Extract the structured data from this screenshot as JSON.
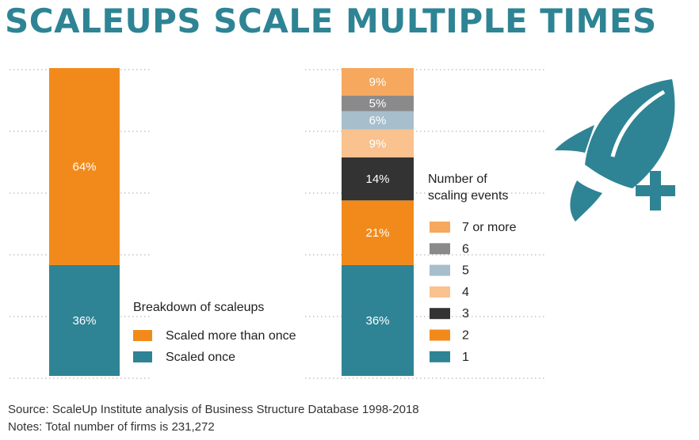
{
  "title": "SCALEUPS SCALE MULTIPLE TIMES",
  "chart_data": [
    {
      "type": "bar",
      "stacked": true,
      "categories": [
        ""
      ],
      "legend_title": "Breakdown of scaleups",
      "series": [
        {
          "name": "Scaled once",
          "values": [
            36
          ],
          "label": "36%",
          "color": "#2e8494"
        },
        {
          "name": "Scaled more than once",
          "values": [
            64
          ],
          "label": "64%",
          "color": "#f28a1b"
        }
      ],
      "ylim": [
        0,
        100
      ],
      "grid": true
    },
    {
      "type": "bar",
      "stacked": true,
      "categories": [
        ""
      ],
      "legend_title": "Number of scaling events",
      "series": [
        {
          "name": "1",
          "values": [
            36
          ],
          "label": "36%",
          "color": "#2e8494"
        },
        {
          "name": "2",
          "values": [
            21
          ],
          "label": "21%",
          "color": "#f28a1b"
        },
        {
          "name": "3",
          "values": [
            14
          ],
          "label": "14%",
          "color": "#333333"
        },
        {
          "name": "4",
          "values": [
            9
          ],
          "label": "9%",
          "color": "#f9c28e"
        },
        {
          "name": "5",
          "values": [
            6
          ],
          "label": "6%",
          "color": "#a7bfcc"
        },
        {
          "name": "6",
          "values": [
            5
          ],
          "label": "5%",
          "color": "#8a8a8a"
        },
        {
          "name": "7 or more",
          "values": [
            9
          ],
          "label": "9%",
          "color": "#f5a85e"
        }
      ],
      "ylim": [
        0,
        100
      ],
      "grid": true
    }
  ],
  "footer": {
    "source": "Source: ScaleUp Institute analysis of Business Structure Database 1998-2018",
    "notes": "Notes: Total number of firms is 231,272"
  },
  "icon": {
    "name": "rocket-plus-icon",
    "color": "#2e8494"
  }
}
